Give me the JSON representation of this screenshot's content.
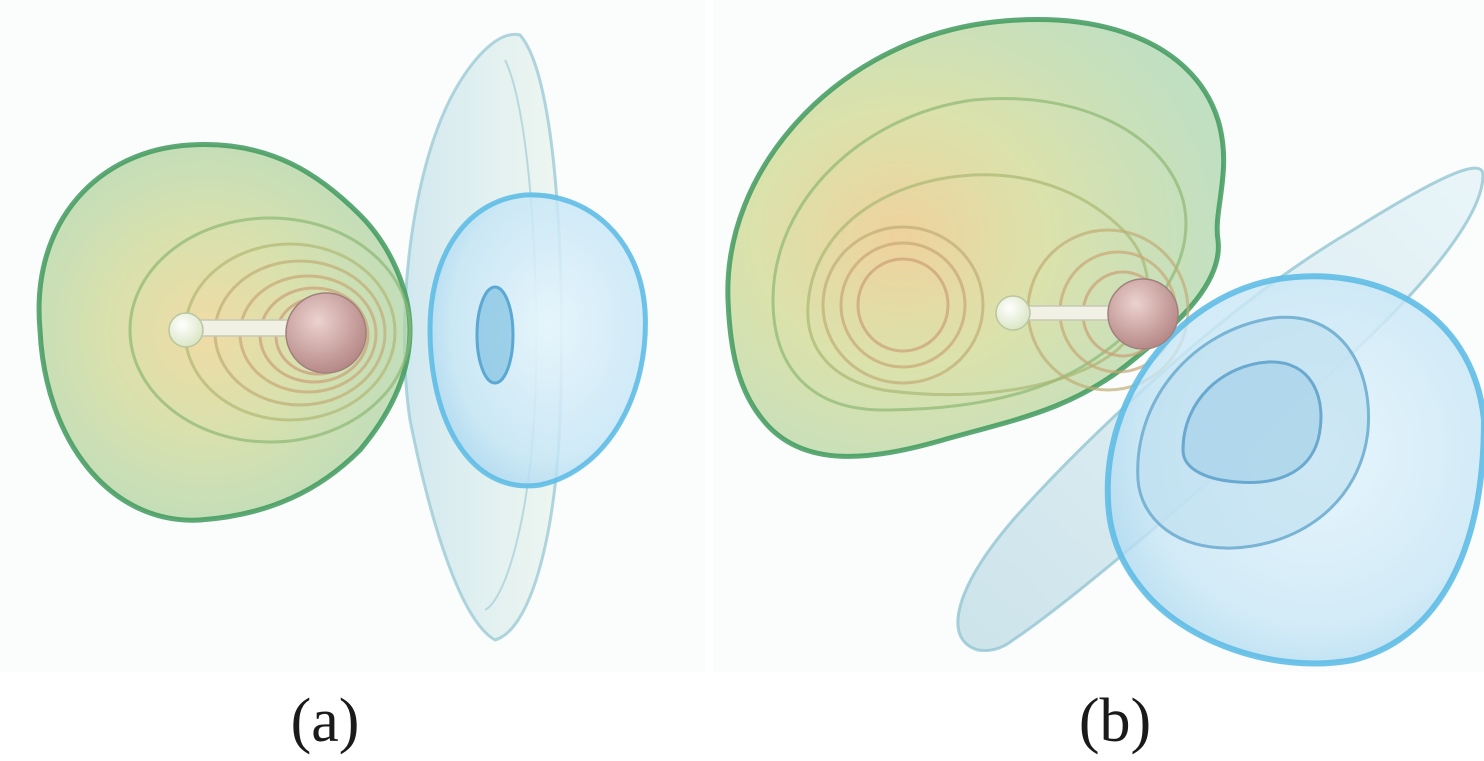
{
  "figure": {
    "panels": [
      {
        "id": "a",
        "caption": "(a)"
      },
      {
        "id": "b",
        "caption": "(b)"
      }
    ]
  },
  "colors": {
    "positive_lobe_edge": "#3f9a5e",
    "positive_lobe_fill": "#b9dcaa",
    "core_warm": "#e9c98c",
    "negative_lobe_edge": "#5fbde6",
    "negative_lobe_fill": "#cfe9f7",
    "atom_heavy": "#c79a98",
    "atom_light": "#eef3d8",
    "background": "#fbfcfc"
  }
}
